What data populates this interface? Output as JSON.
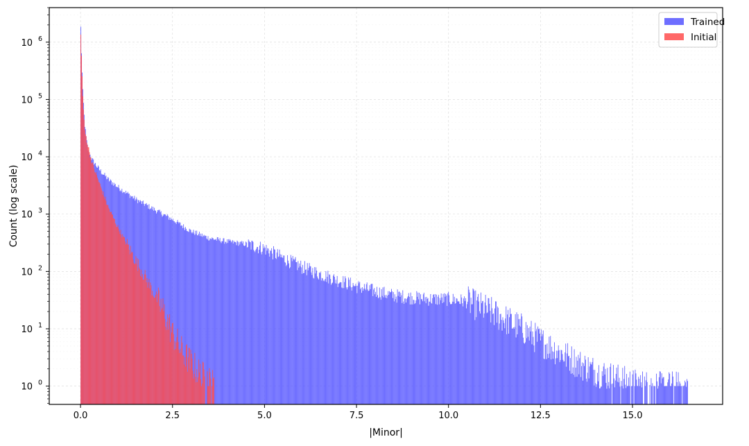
{
  "chart_data": {
    "type": "bar",
    "xlabel": "|Minor|",
    "ylabel": "Count (log scale)",
    "y_scale": "log",
    "xlim": [
      -0.85,
      17.45
    ],
    "ylim": [
      0.48,
      4000000
    ],
    "x_ticks": [
      0.0,
      2.5,
      5.0,
      7.5,
      10.0,
      12.5,
      15.0
    ],
    "x_tick_labels": [
      "0.0",
      "2.5",
      "5.0",
      "7.5",
      "10.0",
      "12.5",
      "15.0"
    ],
    "y_ticks": [
      1,
      10,
      100,
      1000,
      10000,
      100000,
      1000000
    ],
    "y_tick_base": "10",
    "y_tick_exponents": [
      "0",
      "1",
      "2",
      "3",
      "4",
      "5",
      "6"
    ],
    "grid": true,
    "legend_position": "top-right",
    "series": [
      {
        "name": "Trained",
        "color": "#5555ff",
        "opacity": 0.85,
        "x": [
          0.0,
          0.02,
          0.05,
          0.1,
          0.15,
          0.2,
          0.3,
          0.5,
          0.75,
          1.0,
          1.5,
          2.0,
          2.5,
          3.0,
          3.5,
          4.0,
          4.5,
          5.0,
          5.5,
          6.0,
          6.5,
          7.0,
          7.5,
          8.0,
          8.5,
          9.0,
          9.5,
          10.0,
          10.5,
          11.0,
          11.5,
          12.0,
          12.5,
          13.0,
          13.5,
          14.0,
          14.5,
          15.0,
          15.5,
          16.0,
          16.5
        ],
        "y": [
          1800000,
          600000,
          150000,
          40000,
          20000,
          13000,
          9000,
          6000,
          4000,
          3000,
          1800,
          1200,
          800,
          500,
          380,
          330,
          300,
          250,
          170,
          120,
          90,
          70,
          55,
          45,
          38,
          35,
          33,
          33,
          30,
          22,
          15,
          10,
          6,
          4,
          2.5,
          1.8,
          1.4,
          1.1,
          1.0,
          1.0,
          1.0
        ]
      },
      {
        "name": "Initial",
        "color": "#ff4d4d",
        "opacity": 0.85,
        "x": [
          0.0,
          0.02,
          0.05,
          0.1,
          0.2,
          0.3,
          0.5,
          0.75,
          1.0,
          1.25,
          1.5,
          1.75,
          2.0,
          2.25,
          2.5,
          2.75,
          3.0,
          3.25,
          3.5,
          3.65
        ],
        "y": [
          1500000,
          500000,
          130000,
          30000,
          15000,
          8000,
          3500,
          1300,
          600,
          300,
          150,
          80,
          40,
          20,
          8,
          4,
          2.5,
          1.6,
          1.2,
          1.0
        ]
      }
    ]
  }
}
